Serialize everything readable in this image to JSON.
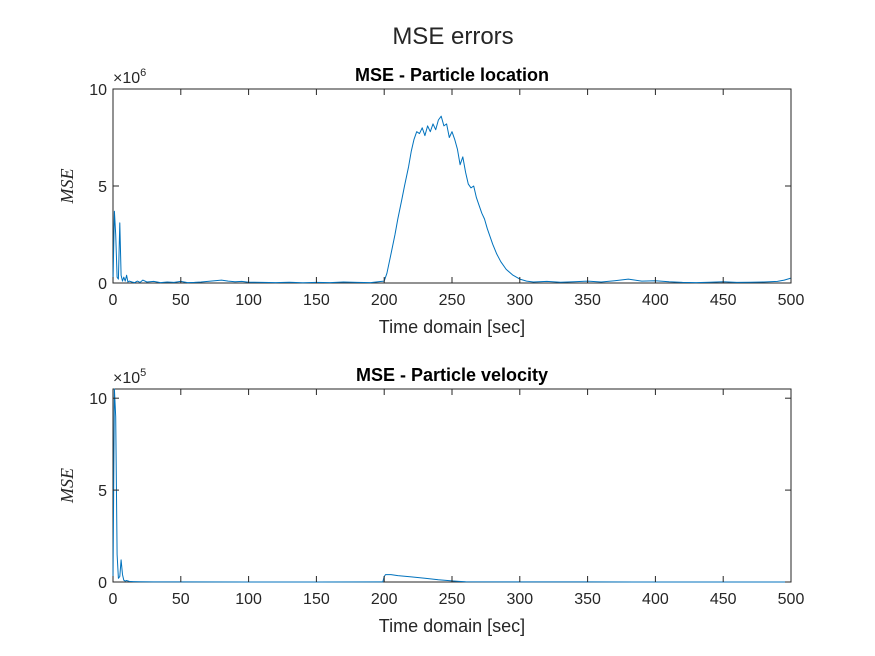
{
  "figure_title": "MSE errors",
  "series_color": "#0072BD",
  "chart_data": [
    {
      "type": "line",
      "title": "MSE - Particle location",
      "xlabel": "Time domain [sec]",
      "ylabel": "MSE",
      "xlim": [
        0,
        500
      ],
      "ylim": [
        0,
        10000000
      ],
      "multiplier": "10",
      "multiplier_exp": "6",
      "x_ticks": [
        0,
        50,
        100,
        150,
        200,
        250,
        300,
        350,
        400,
        450,
        500
      ],
      "y_ticks": [
        0,
        5000000,
        10000000
      ],
      "y_tick_labels": [
        "0",
        "5",
        "10"
      ],
      "grid": false,
      "series": [
        {
          "x": [
            0,
            1,
            2,
            3,
            4,
            5,
            6,
            7,
            8,
            9,
            10,
            11,
            12,
            14,
            16,
            18,
            20,
            22,
            25,
            30,
            35,
            40,
            45,
            50,
            55,
            60,
            65,
            70,
            75,
            80,
            85,
            90,
            95,
            100,
            110,
            120,
            130,
            140,
            150,
            160,
            170,
            180,
            190,
            198,
            200,
            202,
            205,
            208,
            210,
            213,
            215,
            218,
            220,
            222,
            224,
            226,
            228,
            230,
            232,
            234,
            236,
            238,
            240,
            242,
            244,
            246,
            248,
            250,
            252,
            254,
            256,
            258,
            260,
            262,
            264,
            266,
            268,
            270,
            272,
            274,
            276,
            278,
            280,
            283,
            286,
            290,
            295,
            300,
            305,
            310,
            320,
            330,
            340,
            350,
            360,
            370,
            380,
            390,
            400,
            410,
            420,
            430,
            440,
            450,
            460,
            470,
            480,
            490,
            495,
            500
          ],
          "y": [
            0,
            3700000,
            2500000,
            300000,
            200000,
            3100000,
            400000,
            100000,
            300000,
            100000,
            400000,
            50000,
            100000,
            50000,
            20000,
            100000,
            30000,
            150000,
            50000,
            80000,
            20000,
            50000,
            30000,
            80000,
            20000,
            30000,
            50000,
            80000,
            120000,
            150000,
            100000,
            60000,
            80000,
            40000,
            30000,
            20000,
            40000,
            10000,
            30000,
            20000,
            50000,
            30000,
            20000,
            80000,
            100000,
            500000,
            1500000,
            2500000,
            3300000,
            4300000,
            5000000,
            6000000,
            6800000,
            7400000,
            7800000,
            7700000,
            8000000,
            7600000,
            8100000,
            7800000,
            8200000,
            7900000,
            8400000,
            8600000,
            8100000,
            8200000,
            7500000,
            7800000,
            7400000,
            6900000,
            6100000,
            6500000,
            5700000,
            5100000,
            4900000,
            5000000,
            4400000,
            4000000,
            3600000,
            3300000,
            2800000,
            2400000,
            2000000,
            1500000,
            1100000,
            700000,
            400000,
            200000,
            100000,
            50000,
            80000,
            40000,
            60000,
            100000,
            50000,
            120000,
            200000,
            100000,
            120000,
            60000,
            30000,
            20000,
            40000,
            60000,
            30000,
            40000,
            50000,
            80000,
            150000,
            250000
          ]
        }
      ]
    },
    {
      "type": "line",
      "title": "MSE - Particle velocity",
      "xlabel": "Time domain [sec]",
      "ylabel": "MSE",
      "xlim": [
        0,
        500
      ],
      "ylim": [
        0,
        1050000
      ],
      "multiplier": "10",
      "multiplier_exp": "5",
      "x_ticks": [
        0,
        50,
        100,
        150,
        200,
        250,
        300,
        350,
        400,
        450,
        500
      ],
      "y_ticks": [
        0,
        500000,
        1000000
      ],
      "y_tick_labels": [
        "0",
        "5",
        "10"
      ],
      "grid": false,
      "series": [
        {
          "x": [
            0,
            1,
            2,
            3,
            4,
            5,
            6,
            7,
            8,
            9,
            10,
            12,
            15,
            20,
            30,
            50,
            100,
            150,
            199,
            200,
            201,
            205,
            210,
            220,
            230,
            240,
            250,
            255,
            260,
            300,
            350,
            400,
            450,
            500
          ],
          "y": [
            0,
            1050000,
            900000,
            150000,
            20000,
            30000,
            120000,
            40000,
            10000,
            5000,
            8000,
            3000,
            2000,
            1000,
            500,
            300,
            200,
            100,
            500,
            30000,
            40000,
            40000,
            35000,
            28000,
            20000,
            12000,
            6000,
            3000,
            1000,
            500,
            300,
            200,
            100,
            100
          ]
        }
      ]
    }
  ]
}
